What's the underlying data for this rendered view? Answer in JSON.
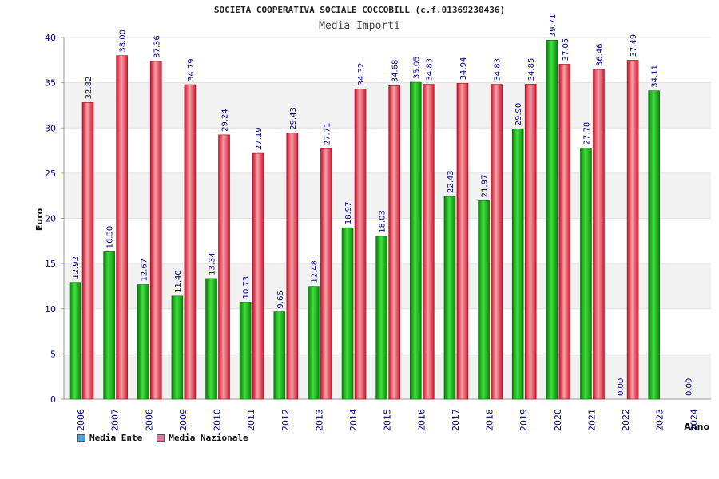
{
  "header": {
    "title": "SOCIETA COOPERATIVA SOCIALE COCCOBILL (c.f.01369230436)",
    "subtitle": "Media Importi"
  },
  "legend": [
    {
      "label": "Media Ente",
      "color": "#4aa3df"
    },
    {
      "label": "Media Nazionale",
      "color": "#e0709c"
    }
  ],
  "chart_data": {
    "type": "bar",
    "title": "Media Importi",
    "ylabel": "Euro",
    "xlabel": "Anno",
    "ylim": [
      0,
      40
    ],
    "yticks": [
      0,
      5,
      10,
      15,
      20,
      25,
      30,
      35,
      40
    ],
    "grid": true,
    "categories": [
      "2006",
      "2007",
      "2008",
      "2009",
      "2010",
      "2011",
      "2012",
      "2013",
      "2014",
      "2015",
      "2016",
      "2017",
      "2018",
      "2019",
      "2020",
      "2021",
      "2022",
      "2023",
      "2024"
    ],
    "series": [
      {
        "name": "Media Ente",
        "color": "#18b318",
        "values": [
          12.92,
          16.3,
          12.67,
          11.4,
          13.34,
          10.73,
          9.66,
          12.48,
          18.97,
          18.03,
          35.05,
          22.43,
          21.97,
          29.9,
          39.71,
          27.78,
          0.0,
          34.11,
          0.0
        ],
        "labels": [
          "12.92",
          "16.30",
          "12.67",
          "11.40",
          "13.34",
          "10.73",
          "9.66",
          "12.48",
          "18.97",
          "18.03",
          "35.05",
          "22.43",
          "21.97",
          "29.90",
          "39.71",
          "27.78",
          "0.00",
          "34.11",
          "0.00"
        ]
      },
      {
        "name": "Media Nazionale",
        "color": "#e8303a",
        "values": [
          32.82,
          38.0,
          37.36,
          34.79,
          29.24,
          27.19,
          29.43,
          27.71,
          34.32,
          34.68,
          34.83,
          34.94,
          34.83,
          34.85,
          37.05,
          36.46,
          37.49,
          null,
          null
        ],
        "labels": [
          "32.82",
          "38.00",
          "37.36",
          "34.79",
          "29.24",
          "27.19",
          "29.43",
          "27.71",
          "34.32",
          "34.68",
          "34.83",
          "34.94",
          "34.83",
          "34.85",
          "37.05",
          "36.46",
          "37.49",
          null,
          null
        ]
      }
    ]
  }
}
